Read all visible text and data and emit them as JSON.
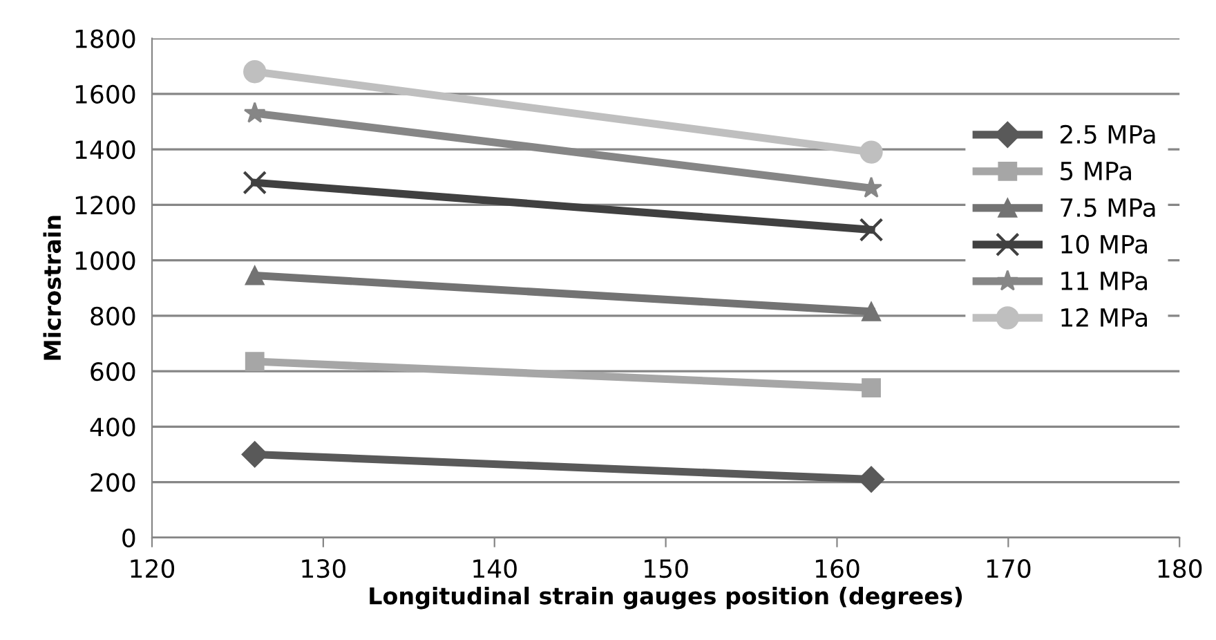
{
  "chart_data": {
    "type": "line",
    "xlabel": "Longitudinal strain gauges position (degrees)",
    "ylabel": "Microstrain",
    "x": [
      126,
      162
    ],
    "series": [
      {
        "name": "2.5 MPa",
        "color": "#595959",
        "marker": "diamond",
        "values": [
          300,
          210
        ]
      },
      {
        "name": "5 MPa",
        "color": "#a6a6a6",
        "marker": "square",
        "values": [
          635,
          540
        ]
      },
      {
        "name": "7.5 MPa",
        "color": "#737373",
        "marker": "triangle",
        "values": [
          945,
          815
        ]
      },
      {
        "name": "10 MPa",
        "color": "#404040",
        "marker": "cross",
        "values": [
          1280,
          1110
        ]
      },
      {
        "name": "11 MPa",
        "color": "#868686",
        "marker": "star",
        "values": [
          1530,
          1260
        ]
      },
      {
        "name": "12 MPa",
        "color": "#bfbfbf",
        "marker": "circle",
        "values": [
          1680,
          1390
        ]
      }
    ],
    "xlim": [
      120,
      180
    ],
    "xticks": [
      120,
      130,
      140,
      150,
      160,
      170,
      180
    ],
    "ylim": [
      0,
      1800
    ],
    "yticks": [
      0,
      200,
      400,
      600,
      800,
      1000,
      1200,
      1400,
      1600,
      1800
    ],
    "grid": "y",
    "legend": "right",
    "line_style": "solid"
  }
}
